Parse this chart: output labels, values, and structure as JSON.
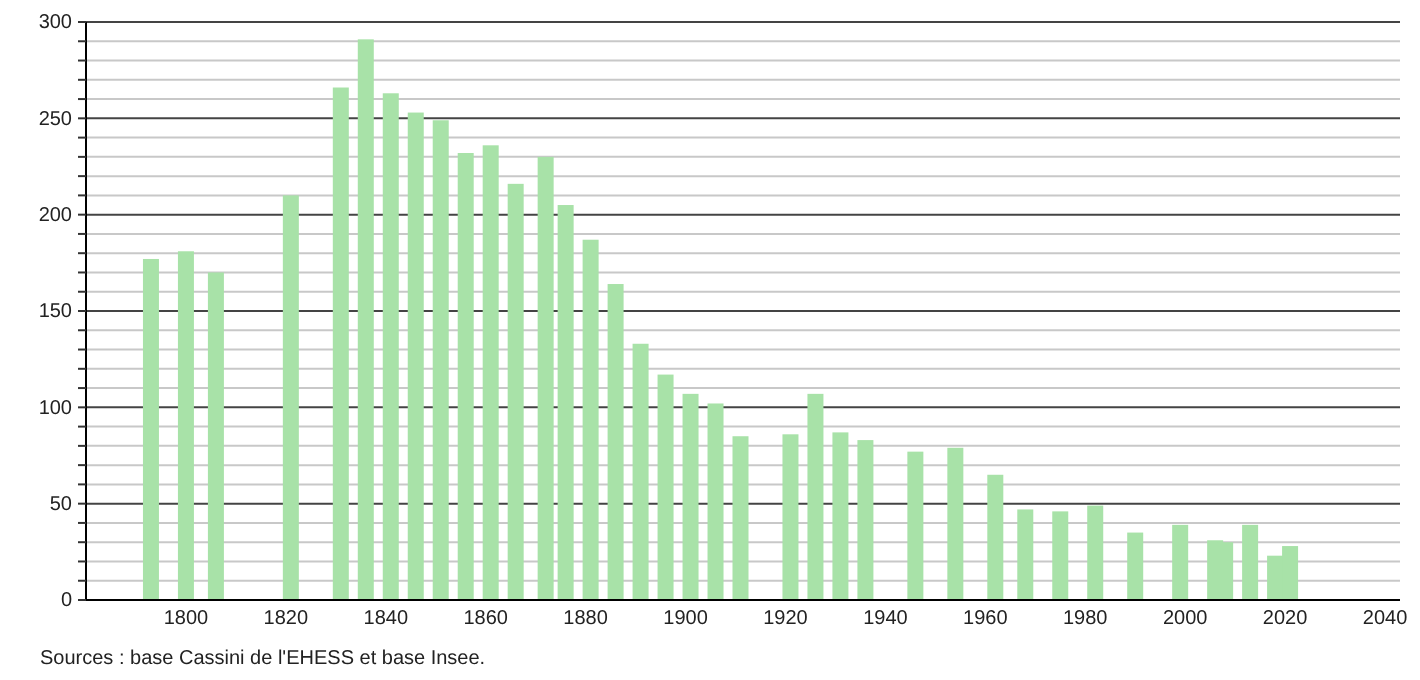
{
  "chart_data": {
    "type": "bar",
    "x": [
      1793,
      1800,
      1806,
      1821,
      1831,
      1836,
      1841,
      1846,
      1851,
      1856,
      1861,
      1866,
      1872,
      1876,
      1881,
      1886,
      1891,
      1896,
      1901,
      1906,
      1911,
      1921,
      1926,
      1931,
      1936,
      1946,
      1954,
      1962,
      1968,
      1975,
      1982,
      1990,
      1999,
      2006,
      2008,
      2013,
      2018,
      2021
    ],
    "values": [
      177,
      181,
      170,
      210,
      266,
      291,
      263,
      253,
      249,
      232,
      236,
      216,
      230,
      205,
      187,
      164,
      133,
      117,
      107,
      102,
      85,
      86,
      107,
      87,
      83,
      77,
      79,
      65,
      47,
      46,
      49,
      35,
      39,
      31,
      30,
      39,
      23,
      28
    ],
    "color": "#a8e2a8",
    "xlim": [
      1780,
      2043
    ],
    "xticks": [
      1800,
      1820,
      1840,
      1860,
      1880,
      1900,
      1920,
      1940,
      1960,
      1980,
      2000,
      2020,
      2040
    ],
    "ylim": [
      0,
      300
    ],
    "yticks": [
      0,
      {
        "value": 10,
        "label": null
      },
      {
        "value": 20,
        "label": null
      },
      {
        "value": 30,
        "label": null
      },
      {
        "value": 40,
        "label": null
      },
      50,
      {
        "value": 60,
        "label": null
      },
      {
        "value": 70,
        "label": null
      },
      {
        "value": 80,
        "label": null
      },
      {
        "value": 90,
        "label": null
      },
      100,
      {
        "value": 110,
        "label": null
      },
      {
        "value": 120,
        "label": null
      },
      {
        "value": 130,
        "label": null
      },
      {
        "value": 140,
        "label": null
      },
      150,
      {
        "value": 160,
        "label": null
      },
      {
        "value": 170,
        "label": null
      },
      {
        "value": 180,
        "label": null
      },
      {
        "value": 190,
        "label": null
      },
      200,
      {
        "value": 210,
        "label": null
      },
      {
        "value": 220,
        "label": null
      },
      {
        "value": 230,
        "label": null
      },
      {
        "value": 240,
        "label": null
      },
      250,
      {
        "value": 260,
        "label": null
      },
      {
        "value": 270,
        "label": null
      },
      {
        "value": 280,
        "label": null
      },
      {
        "value": 290,
        "label": null
      },
      300
    ],
    "grid": "y",
    "annotations": [
      "Sources : base Cassini de l'EHESS et base Insee."
    ]
  }
}
